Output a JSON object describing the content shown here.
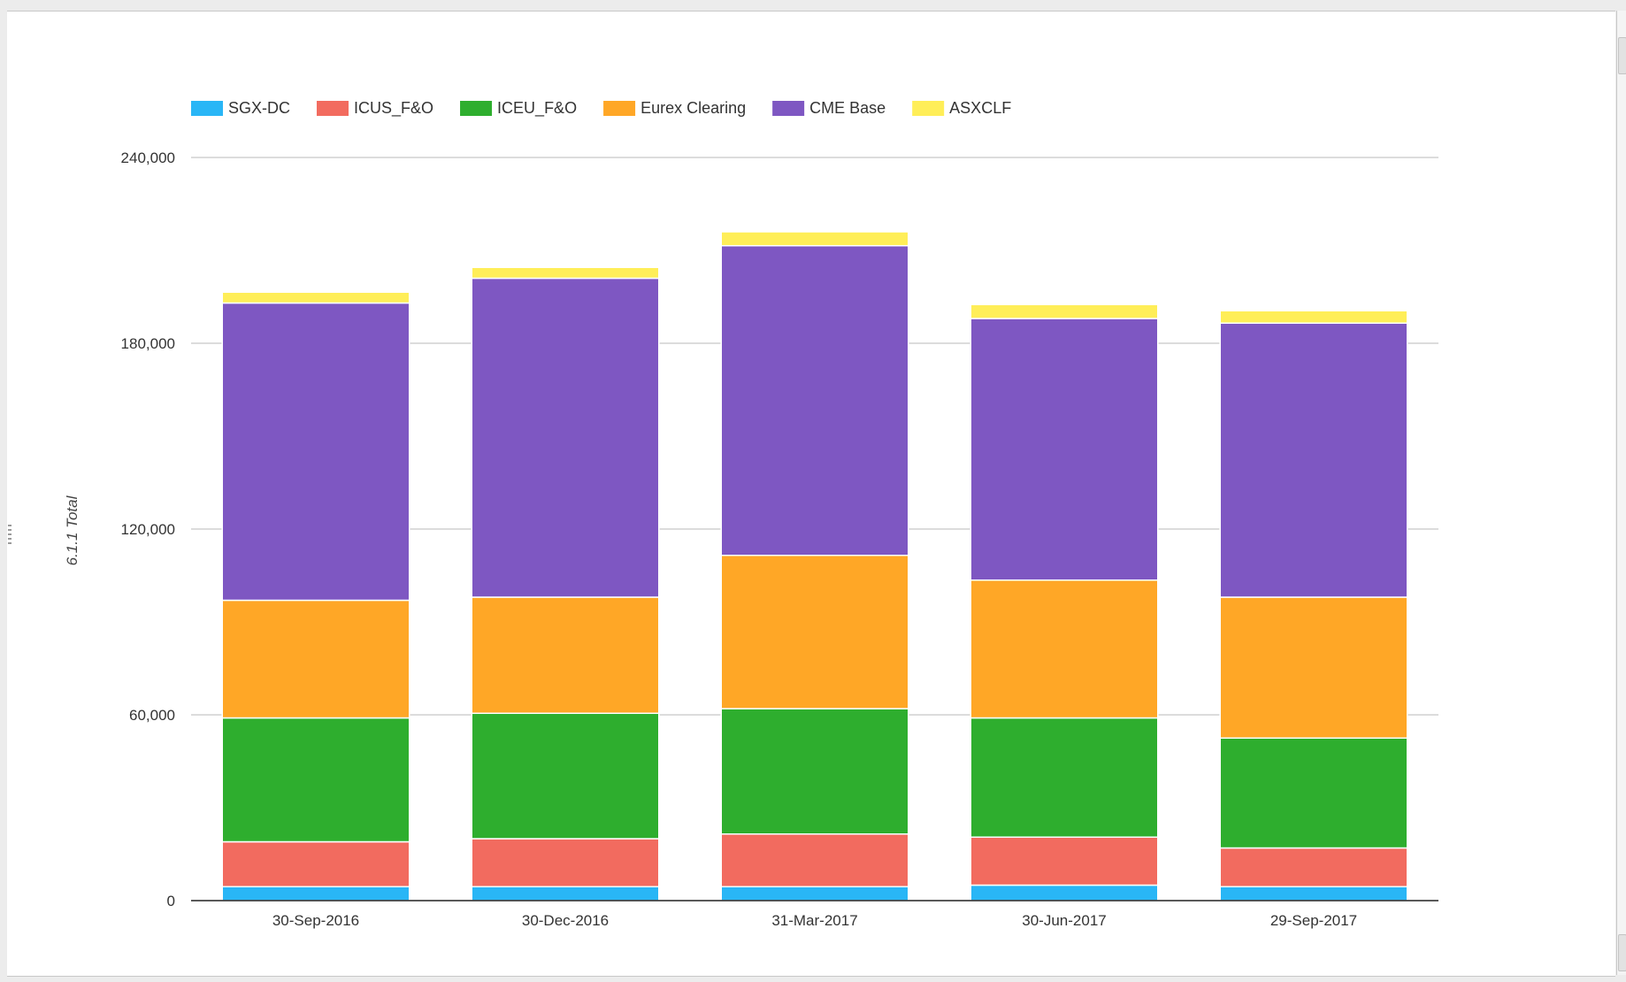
{
  "chart_data": {
    "type": "bar",
    "stacked": true,
    "title": "",
    "xlabel": "",
    "ylabel": "6.1.1 Total",
    "ylim": [
      0,
      240000
    ],
    "yticks": [
      0,
      60000,
      120000,
      180000,
      240000
    ],
    "ytick_labels": [
      "0",
      "60,000",
      "120,000",
      "180,000",
      "240,000"
    ],
    "grid": true,
    "legend": "top-left",
    "categories": [
      "30-Sep-2016",
      "30-Dec-2016",
      "31-Mar-2017",
      "30-Jun-2017",
      "29-Sep-2017"
    ],
    "series": [
      {
        "name": "SGX-DC",
        "color": "#29b6f6",
        "values": [
          4500,
          4500,
          4500,
          5000,
          4500
        ]
      },
      {
        "name": "ICUS_F&O",
        "color": "#f26b5f",
        "values": [
          14500,
          15500,
          17000,
          15500,
          12500
        ]
      },
      {
        "name": "ICEU_F&O",
        "color": "#2eae2e",
        "values": [
          40000,
          40500,
          40500,
          38500,
          35500
        ]
      },
      {
        "name": "Eurex Clearing",
        "color": "#ffa726",
        "values": [
          38000,
          37500,
          49500,
          44500,
          45500
        ]
      },
      {
        "name": "CME Base",
        "color": "#7e57c2",
        "values": [
          96000,
          103000,
          100000,
          84500,
          88500
        ]
      },
      {
        "name": "ASXCLF",
        "color": "#ffee58",
        "values": [
          3500,
          3500,
          4500,
          4500,
          4000
        ]
      }
    ]
  }
}
